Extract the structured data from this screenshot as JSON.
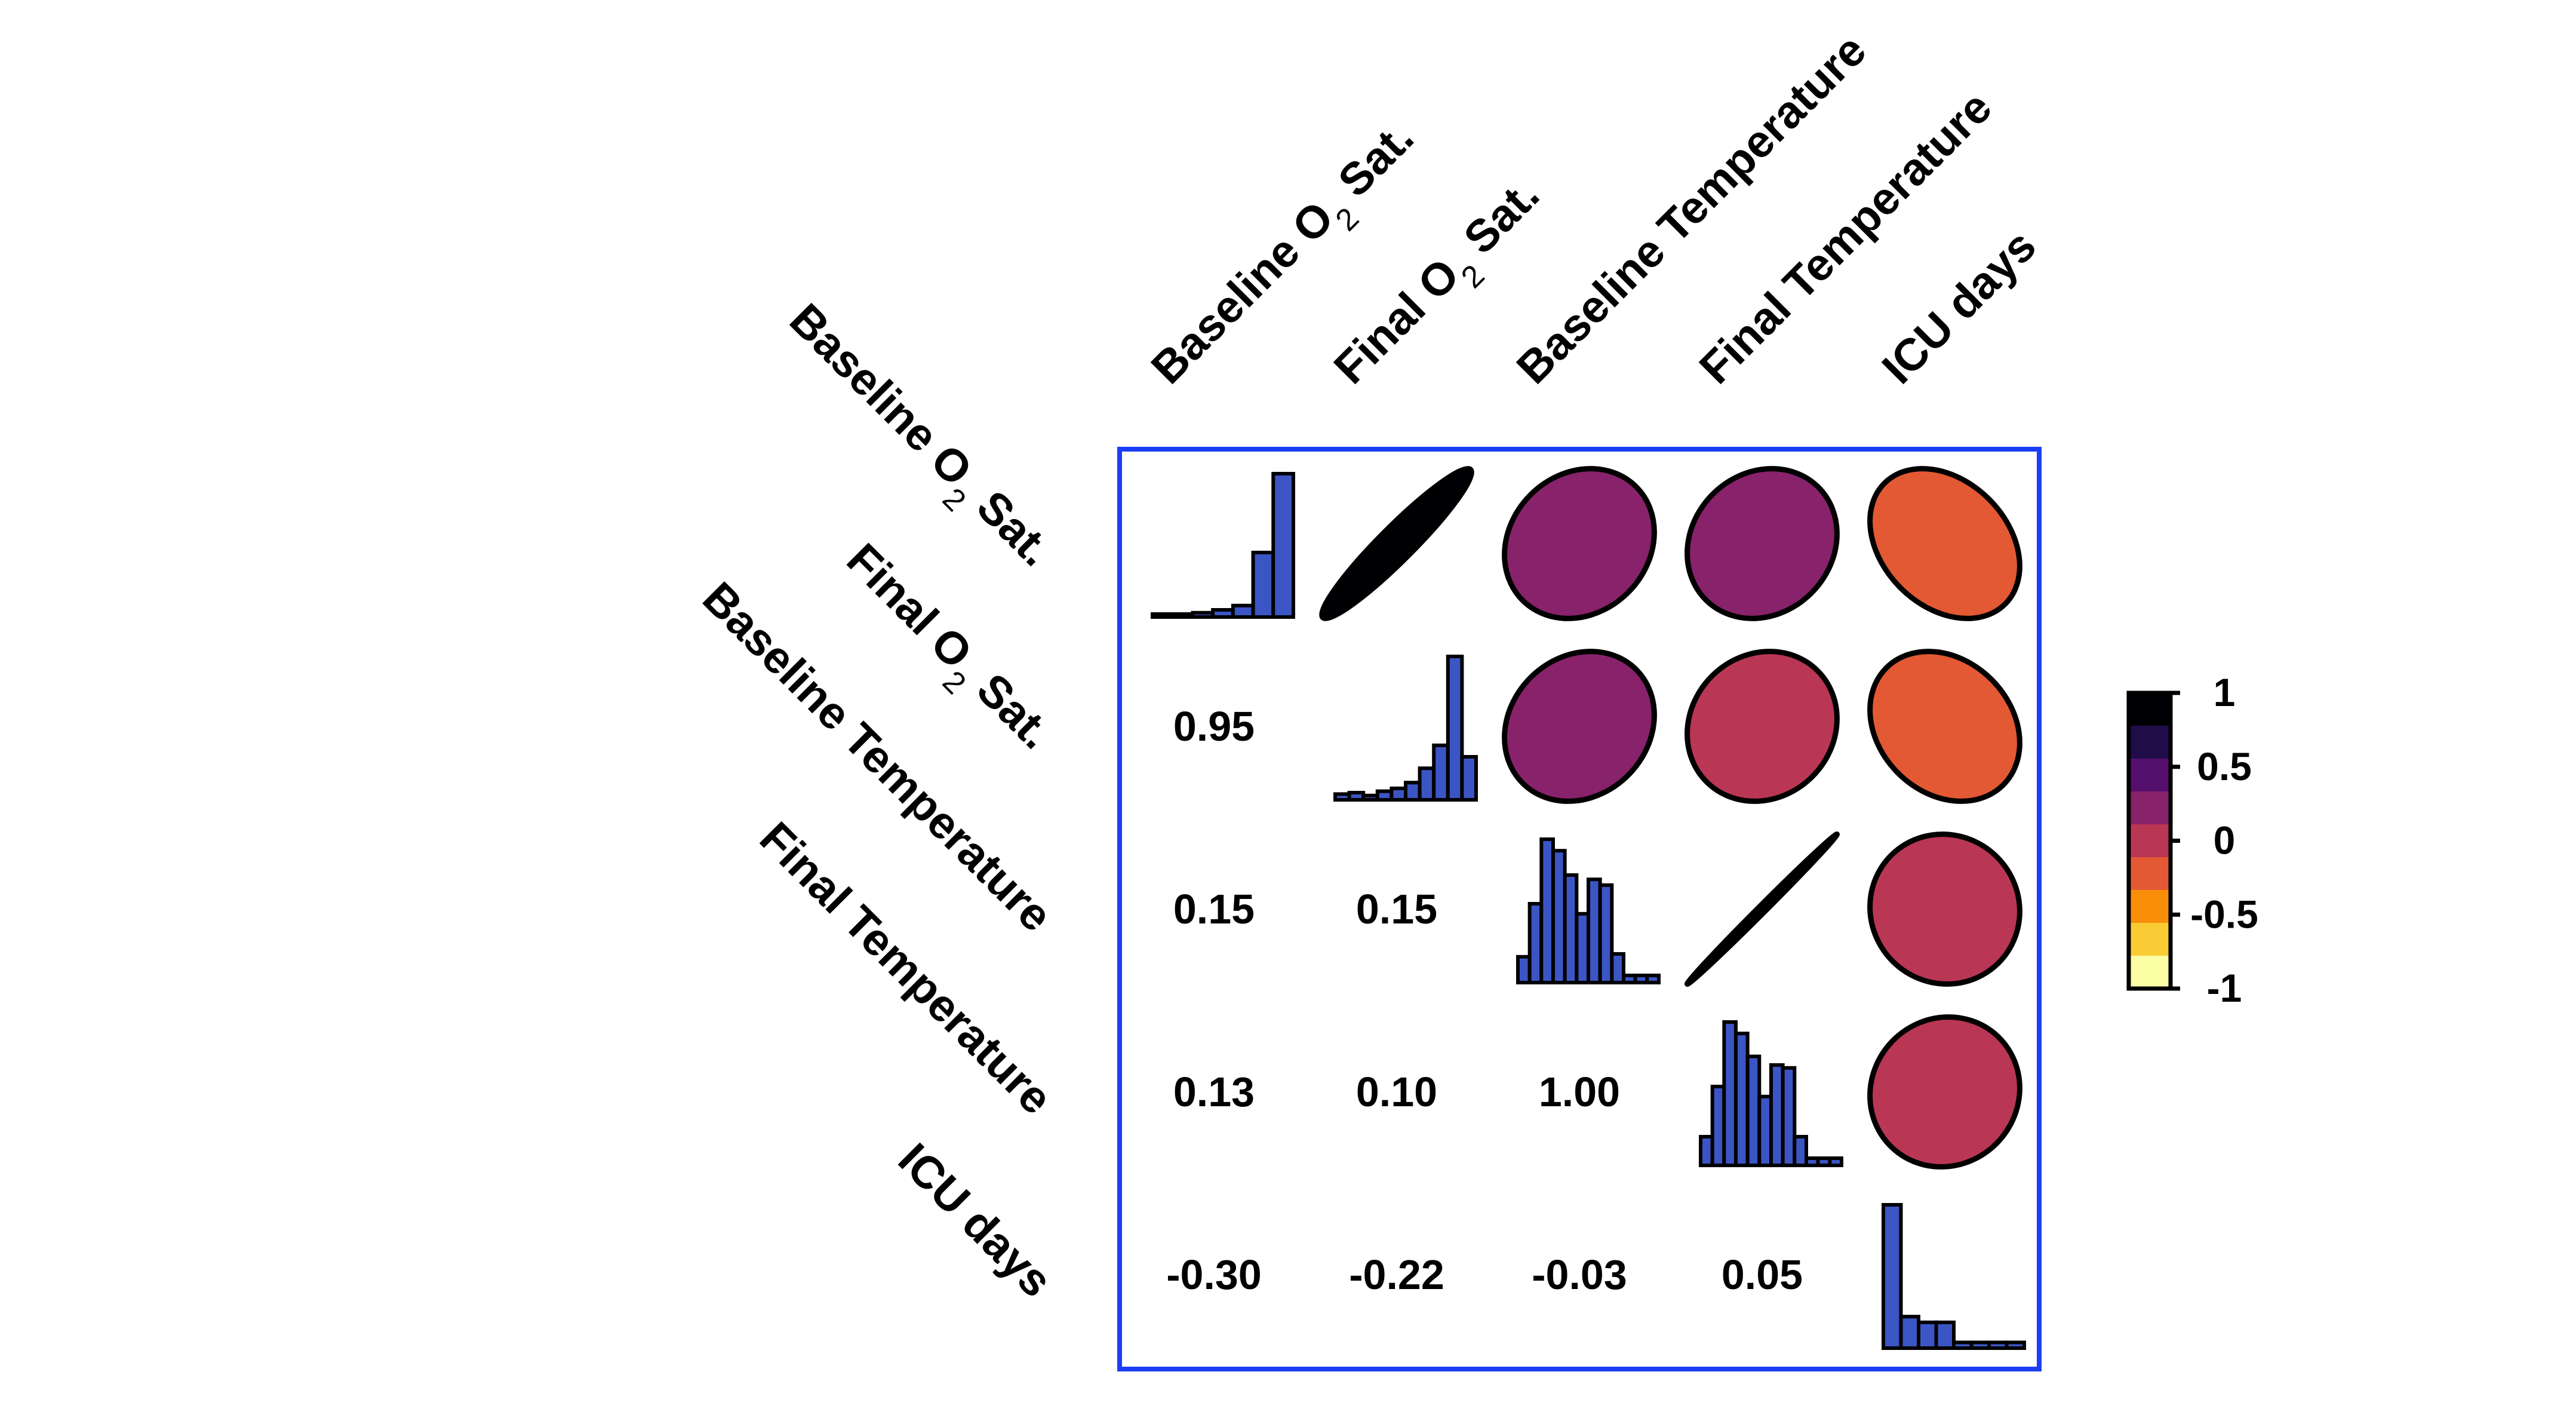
{
  "chart_data": {
    "type": "heatmap",
    "variables": [
      {
        "name": "Baseline O2 Sat.",
        "base": "Baseline O",
        "sub": "2",
        "rest": " Sat."
      },
      {
        "name": "Final O2 Sat.",
        "base": "Final O",
        "sub": "2",
        "rest": " Sat."
      },
      {
        "name": "Baseline Temperature",
        "base": "Baseline Temperature",
        "sub": "",
        "rest": ""
      },
      {
        "name": "Final Temperature",
        "base": "Final Temperature",
        "sub": "",
        "rest": ""
      },
      {
        "name": "ICU days",
        "base": "ICU days",
        "sub": "",
        "rest": ""
      }
    ],
    "correlation_matrix": [
      [
        1.0,
        0.95,
        0.15,
        0.13,
        -0.3
      ],
      [
        0.95,
        1.0,
        0.15,
        0.1,
        -0.22
      ],
      [
        0.15,
        0.15,
        1.0,
        1.0,
        -0.03
      ],
      [
        0.13,
        0.1,
        1.0,
        1.0,
        0.05
      ],
      [
        -0.3,
        -0.22,
        -0.03,
        0.05,
        1.0
      ]
    ],
    "lower_triangle_labels": [
      {
        "row": 1,
        "col": 0,
        "text": "0.95"
      },
      {
        "row": 2,
        "col": 0,
        "text": "0.15"
      },
      {
        "row": 2,
        "col": 1,
        "text": "0.15"
      },
      {
        "row": 3,
        "col": 0,
        "text": "0.13"
      },
      {
        "row": 3,
        "col": 1,
        "text": "0.10"
      },
      {
        "row": 3,
        "col": 2,
        "text": "1.00"
      },
      {
        "row": 4,
        "col": 0,
        "text": "-0.30"
      },
      {
        "row": 4,
        "col": 1,
        "text": "-0.22"
      },
      {
        "row": 4,
        "col": 2,
        "text": "-0.03"
      },
      {
        "row": 4,
        "col": 3,
        "text": "0.05"
      }
    ],
    "upper_triangle": "ellipses",
    "diagonal": "histograms",
    "histograms": [
      [
        0.02,
        0.02,
        0.03,
        0.05,
        0.08,
        0.45,
        1.0
      ],
      [
        0.04,
        0.05,
        0.03,
        0.06,
        0.08,
        0.12,
        0.22,
        0.38,
        1.0,
        0.3
      ],
      [
        0.18,
        0.55,
        1.0,
        0.92,
        0.75,
        0.48,
        0.72,
        0.68,
        0.2,
        0.05,
        0.05,
        0.05
      ],
      [
        0.2,
        0.55,
        1.0,
        0.92,
        0.76,
        0.48,
        0.7,
        0.68,
        0.2,
        0.05,
        0.05,
        0.05
      ],
      [
        1.0,
        0.22,
        0.18,
        0.18,
        0.04,
        0.04,
        0.04,
        0.04
      ]
    ],
    "colorbar": {
      "ticks": [
        "1",
        "0.5",
        "0",
        "-0.5",
        "-1"
      ],
      "colors": [
        "#000004",
        "#1f0c48",
        "#550f6d",
        "#88226a",
        "#ba3655",
        "#e35933",
        "#f98e09",
        "#f9cb35",
        "#fcffa4"
      ]
    },
    "colors": {
      "frame": "#1a3ef5",
      "histogram_fill": "#3c55c4"
    }
  }
}
